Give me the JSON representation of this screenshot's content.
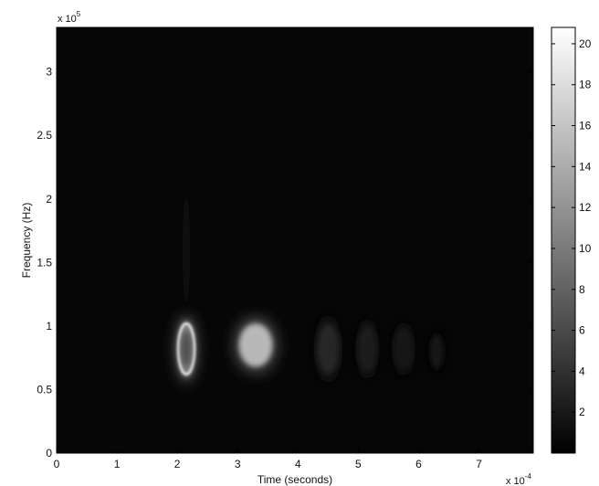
{
  "chart_data": {
    "type": "heatmap",
    "title": "",
    "xlabel": "Time (seconds)",
    "ylabel": "Frequency (Hz)",
    "x_multiplier": "x 10",
    "x_multiplier_exp": "-4",
    "y_multiplier": "x 10",
    "y_multiplier_exp": "5",
    "xlim": [
      0,
      7.9
    ],
    "ylim": [
      0,
      3.35
    ],
    "x_ticks": [
      0,
      1,
      2,
      3,
      4,
      5,
      6,
      7
    ],
    "x_tick_labels": [
      "0",
      "1",
      "2",
      "3",
      "4",
      "5",
      "6",
      "7"
    ],
    "y_ticks": [
      0,
      0.5,
      1,
      1.5,
      2,
      2.5,
      3
    ],
    "y_tick_labels": [
      "0",
      "0.5",
      "1",
      "1.5",
      "2",
      "2.5",
      "3"
    ],
    "colorbar": {
      "range": [
        0,
        20.8
      ],
      "ticks": [
        2,
        4,
        6,
        8,
        10,
        12,
        14,
        16,
        18,
        20
      ],
      "tick_labels": [
        "2",
        "4",
        "6",
        "8",
        "10",
        "12",
        "14",
        "16",
        "18",
        "20"
      ],
      "colormap": "gray"
    },
    "background_level": 0.5,
    "features": [
      {
        "shape": "ring",
        "time": 2.15,
        "frequency": 0.82,
        "time_radius": 0.15,
        "frequency_radius": 0.22,
        "level": 18.5
      },
      {
        "shape": "blob",
        "time": 3.3,
        "frequency": 0.85,
        "time_radius": 0.28,
        "frequency_radius": 0.17,
        "level": 15
      },
      {
        "shape": "blob",
        "time": 4.5,
        "frequency": 0.82,
        "time_radius": 0.18,
        "frequency_radius": 0.2,
        "level": 3
      },
      {
        "shape": "blob",
        "time": 5.15,
        "frequency": 0.82,
        "time_radius": 0.15,
        "frequency_radius": 0.18,
        "level": 2.5
      },
      {
        "shape": "blob",
        "time": 5.75,
        "frequency": 0.82,
        "time_radius": 0.15,
        "frequency_radius": 0.16,
        "level": 2
      },
      {
        "shape": "blob",
        "time": 6.3,
        "frequency": 0.8,
        "time_radius": 0.12,
        "frequency_radius": 0.14,
        "level": 1.5
      },
      {
        "shape": "streak",
        "time": 2.15,
        "frequency": 1.6,
        "time_radius": 0.03,
        "frequency_radius": 0.45,
        "level": 2
      }
    ]
  }
}
